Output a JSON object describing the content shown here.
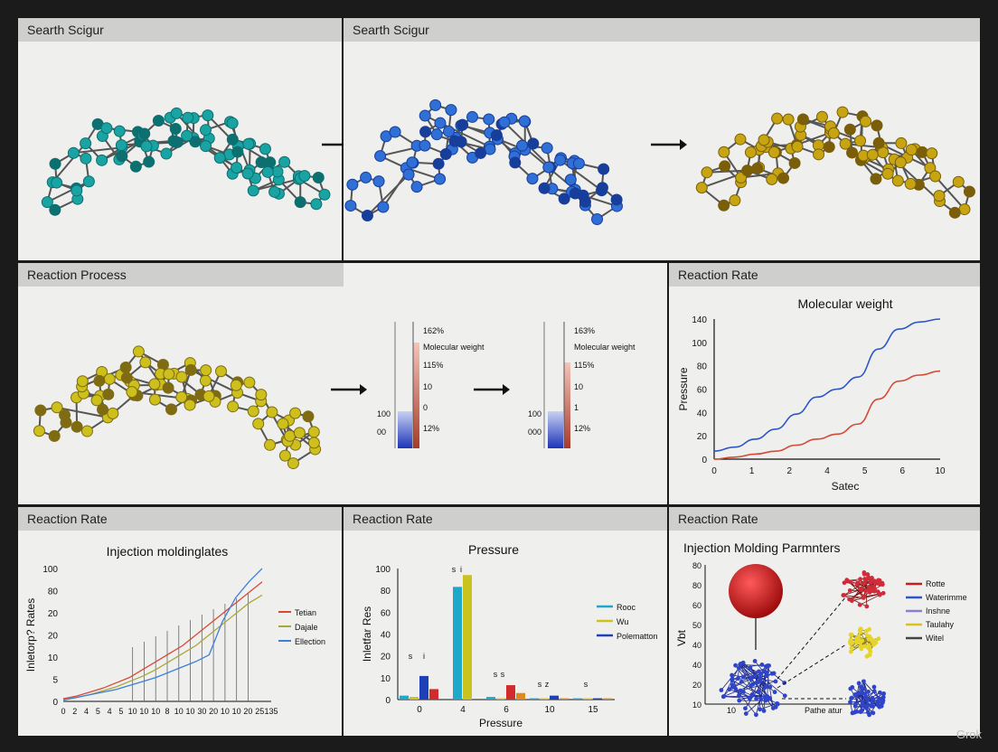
{
  "panels": {
    "top_left": {
      "title": "Searth Scigur",
      "molecule_color": "#1aa3a3",
      "molecule_dark": "#0c6f70"
    },
    "top_right": {
      "title": "Searth Scigur",
      "molecule_color": "#2f6fd6",
      "molecule_dark": "#173e9a",
      "molecule3_color": "#c7a512",
      "molecule3_dark": "#7a5e0a"
    },
    "middle_left": {
      "title": "Reaction Process",
      "molecule_color": "#cdbf1c",
      "molecule_dark": "#7f6c12",
      "gauge1": {
        "labels": [
          "162%",
          "Molecular weight",
          "115%",
          "10",
          "0",
          "12%"
        ],
        "side_top": "100",
        "side_bottom": "00"
      },
      "gauge2": {
        "labels": [
          "163%",
          "Molecular weight",
          "115%",
          "10",
          "1",
          "12%"
        ],
        "side_top": "100",
        "side_bottom": "000"
      }
    },
    "middle_right": {
      "title": "Reaction Rate"
    },
    "bottom_left": {
      "title": "Reaction Rate"
    },
    "bottom_mid": {
      "title": "Reaction Rate"
    },
    "bottom_right": {
      "title": "Reaction Rate"
    }
  },
  "watermark": "Grok",
  "chart_data": [
    {
      "type": "line",
      "title": "Molecular weight",
      "xlabel": "Satec",
      "ylabel": "Pressure",
      "x_ticks": [
        "0",
        "1",
        "2",
        "4",
        "5",
        "6",
        "10"
      ],
      "y_ticks": [
        "0",
        "20",
        "40",
        "60",
        "80",
        "100",
        "140"
      ],
      "ylim": [
        0,
        140
      ],
      "series": [
        {
          "color": "#2f56c9",
          "values": [
            8,
            12,
            20,
            30,
            45,
            62,
            70,
            82,
            110,
            130,
            137,
            140
          ]
        },
        {
          "color": "#d64a35",
          "values": [
            0,
            2,
            5,
            8,
            14,
            20,
            25,
            35,
            60,
            78,
            84,
            88
          ]
        }
      ]
    },
    {
      "type": "line",
      "title": "Injection moldinglates",
      "ylabel": "Inletorp? Rates",
      "x_ticks": [
        "0",
        "2",
        "4",
        "5",
        "4",
        "5",
        "10",
        "10",
        "10",
        "8",
        "10",
        "10",
        "30",
        "20",
        "10",
        "10",
        "20",
        "25",
        "135"
      ],
      "y_ticks": [
        "0",
        "5",
        "10",
        "20",
        "20",
        "80",
        "100"
      ],
      "ylim": [
        0,
        100
      ],
      "legend": [
        "Tetian",
        "Dajale",
        "Ellection"
      ],
      "series": [
        {
          "name": "Tetian",
          "color": "#d64a35",
          "values": [
            2,
            4,
            7,
            10,
            14,
            18,
            24,
            30,
            36,
            42,
            50,
            58,
            66,
            74,
            82,
            90
          ]
        },
        {
          "name": "Dajale",
          "color": "#a8a83a",
          "values": [
            1,
            3,
            5,
            8,
            11,
            15,
            19,
            24,
            30,
            36,
            42,
            50,
            58,
            66,
            74,
            80
          ]
        },
        {
          "name": "Ellection",
          "color": "#3d7fd9",
          "values": [
            1,
            3,
            5,
            7,
            9,
            12,
            15,
            18,
            22,
            26,
            30,
            35,
            60,
            78,
            90,
            100
          ]
        }
      ]
    },
    {
      "type": "bar",
      "title": "Pressure",
      "xlabel": "Pressure",
      "ylabel": "Inletfar Res",
      "categories": [
        "0",
        "4",
        "6",
        "10",
        "15"
      ],
      "y_ticks": [
        "0",
        "10",
        "20",
        "40",
        "60",
        "80",
        "100"
      ],
      "ylim": [
        0,
        100
      ],
      "legend": [
        "Rooc",
        "Wu",
        "Polematton"
      ],
      "series": [
        {
          "name": "Rooc",
          "color": "#1fa8c9",
          "values": [
            3,
            86,
            2,
            1,
            1
          ]
        },
        {
          "name": "Wu",
          "color": "#c9c21f",
          "values": [
            2,
            95,
            1,
            1,
            1
          ]
        },
        {
          "name": "Polematton",
          "color": "#1d3fb8",
          "values": [
            18,
            0,
            0,
            3,
            1
          ]
        },
        {
          "name": "",
          "color": "#d12b2b",
          "values": [
            8,
            0,
            11,
            0,
            0
          ]
        },
        {
          "name": "",
          "color": "#e08a1c",
          "values": [
            0,
            0,
            5,
            1,
            1
          ]
        }
      ],
      "data_labels": [
        "s",
        "i",
        "s",
        "i",
        "s",
        "s",
        "s",
        "z",
        "s"
      ]
    },
    {
      "type": "scatter",
      "title": "Injection Molding Parmnters",
      "xlabel": "Pathe atur",
      "ylabel": "Vbt",
      "x_ticks": [
        "10"
      ],
      "y_ticks": [
        "10",
        "20",
        "40",
        "40",
        "50",
        "60",
        "80",
        "80"
      ],
      "legend": [
        "Rotte",
        "Waterimme",
        "Inshne",
        "Taulahy",
        "Witel"
      ],
      "legend_colors": [
        "#c41e1e",
        "#2f56c9",
        "#8a7fd1",
        "#d9c21f",
        "#444444"
      ]
    }
  ]
}
